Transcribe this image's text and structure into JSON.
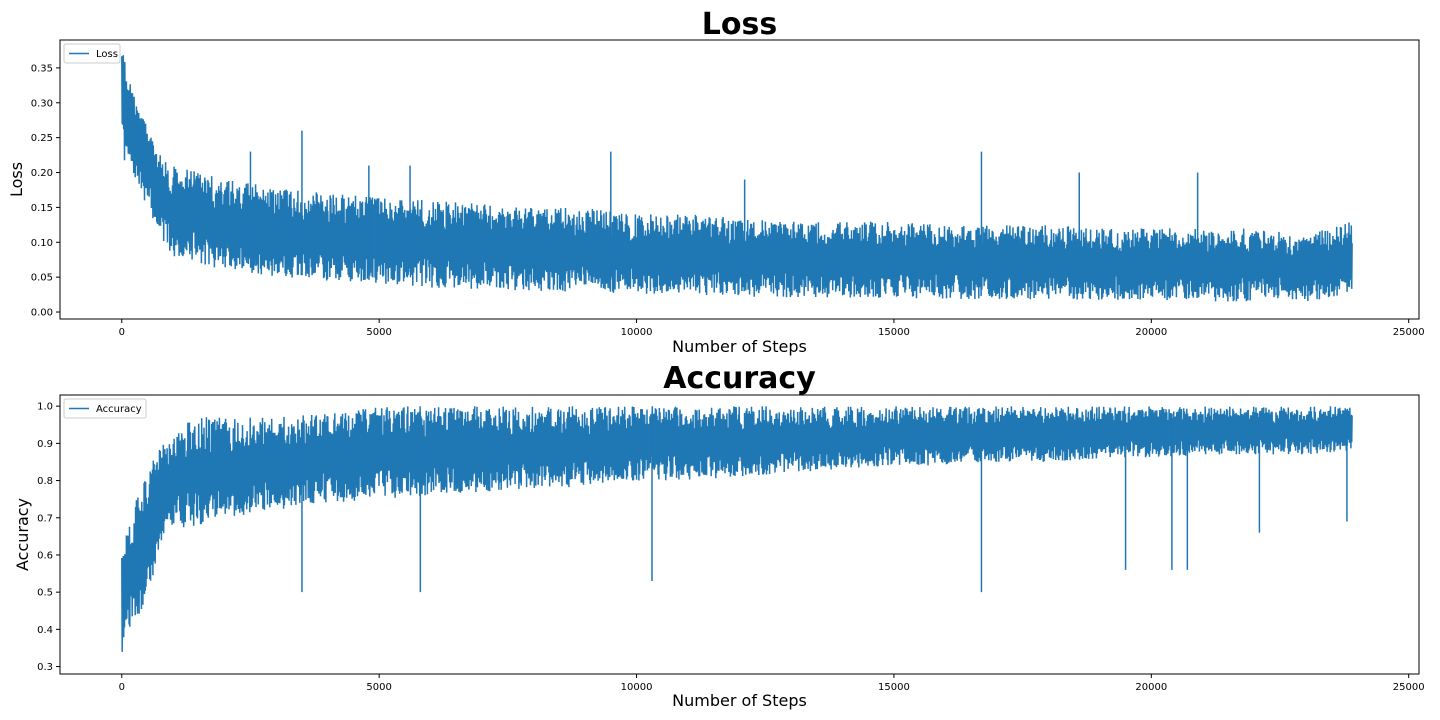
{
  "chart_data": [
    {
      "type": "line",
      "title": "Loss",
      "xlabel": "Number of Steps",
      "ylabel": "Loss",
      "xlim": [
        -1200,
        25200
      ],
      "ylim": [
        -0.01,
        0.39
      ],
      "xticks": [
        0,
        5000,
        10000,
        15000,
        20000,
        25000
      ],
      "xtick_labels": [
        "0",
        "5000",
        "10000",
        "15000",
        "20000",
        "25000"
      ],
      "yticks": [
        0.0,
        0.05,
        0.1,
        0.15,
        0.2,
        0.25,
        0.3,
        0.35
      ],
      "ytick_labels": [
        "0.00",
        "0.05",
        "0.10",
        "0.15",
        "0.20",
        "0.25",
        "0.30",
        "0.35"
      ],
      "grid": false,
      "legend": "upper-left",
      "series": [
        {
          "name": "Loss",
          "color": "#1f77b4",
          "x": [
            0,
            200,
            500,
            800,
            1000,
            1500,
            2000,
            3000,
            4000,
            5000,
            6000,
            7000,
            8000,
            9000,
            10000,
            11000,
            12000,
            13000,
            14000,
            15000,
            16000,
            17000,
            18000,
            19000,
            20000,
            21000,
            22000,
            23000,
            23900
          ],
          "y_lower": [
            0.22,
            0.2,
            0.15,
            0.1,
            0.08,
            0.07,
            0.06,
            0.05,
            0.045,
            0.04,
            0.035,
            0.033,
            0.03,
            0.028,
            0.025,
            0.024,
            0.022,
            0.021,
            0.02,
            0.02,
            0.019,
            0.018,
            0.018,
            0.017,
            0.016,
            0.015,
            0.015,
            0.015,
            0.02
          ],
          "y_upper": [
            0.38,
            0.32,
            0.27,
            0.22,
            0.21,
            0.2,
            0.19,
            0.18,
            0.17,
            0.165,
            0.16,
            0.155,
            0.15,
            0.15,
            0.14,
            0.14,
            0.135,
            0.13,
            0.13,
            0.13,
            0.125,
            0.125,
            0.125,
            0.12,
            0.12,
            0.12,
            0.12,
            0.11,
            0.13
          ],
          "spikes": [
            [
              2500,
              0.23
            ],
            [
              3500,
              0.26
            ],
            [
              4800,
              0.21
            ],
            [
              5600,
              0.21
            ],
            [
              9500,
              0.23
            ],
            [
              12100,
              0.19
            ],
            [
              16700,
              0.23
            ],
            [
              18600,
              0.2
            ],
            [
              20900,
              0.2
            ]
          ]
        }
      ]
    },
    {
      "type": "line",
      "title": "Accuracy",
      "xlabel": "Number of Steps",
      "ylabel": "Accuracy",
      "xlim": [
        -1200,
        25200
      ],
      "ylim": [
        0.28,
        1.03
      ],
      "xticks": [
        0,
        5000,
        10000,
        15000,
        20000,
        25000
      ],
      "xtick_labels": [
        "0",
        "5000",
        "10000",
        "15000",
        "20000",
        "25000"
      ],
      "yticks": [
        0.3,
        0.4,
        0.5,
        0.6,
        0.7,
        0.8,
        0.9,
        1.0
      ],
      "ytick_labels": [
        "0.3",
        "0.4",
        "0.5",
        "0.6",
        "0.7",
        "0.8",
        "0.9",
        "1.0"
      ],
      "grid": false,
      "legend": "upper-left",
      "series": [
        {
          "name": "Accuracy",
          "color": "#1f77b4",
          "x": [
            0,
            200,
            500,
            800,
            1000,
            1500,
            2000,
            3000,
            4000,
            5000,
            6000,
            7000,
            8000,
            9000,
            10000,
            11000,
            12000,
            13000,
            14000,
            15000,
            16000,
            17000,
            18000,
            19000,
            20000,
            21000,
            22000,
            23000,
            23900
          ],
          "y_lower": [
            0.33,
            0.38,
            0.5,
            0.62,
            0.66,
            0.68,
            0.7,
            0.72,
            0.74,
            0.75,
            0.76,
            0.77,
            0.78,
            0.78,
            0.8,
            0.8,
            0.81,
            0.82,
            0.83,
            0.84,
            0.84,
            0.85,
            0.85,
            0.86,
            0.86,
            0.87,
            0.87,
            0.87,
            0.88
          ],
          "y_upper": [
            0.62,
            0.72,
            0.82,
            0.91,
            0.94,
            0.97,
            0.97,
            0.97,
            0.98,
            1.0,
            1.0,
            1.0,
            1.0,
            1.0,
            1.0,
            1.0,
            1.0,
            1.0,
            1.0,
            1.0,
            1.0,
            1.0,
            1.0,
            1.0,
            1.0,
            1.0,
            1.0,
            1.0,
            1.0
          ],
          "spikes": [
            [
              3500,
              0.5
            ],
            [
              5800,
              0.5
            ],
            [
              10300,
              0.53
            ],
            [
              16700,
              0.5
            ],
            [
              19500,
              0.56
            ],
            [
              20400,
              0.56
            ],
            [
              20700,
              0.56
            ],
            [
              22100,
              0.66
            ],
            [
              23800,
              0.69
            ]
          ]
        }
      ]
    }
  ]
}
